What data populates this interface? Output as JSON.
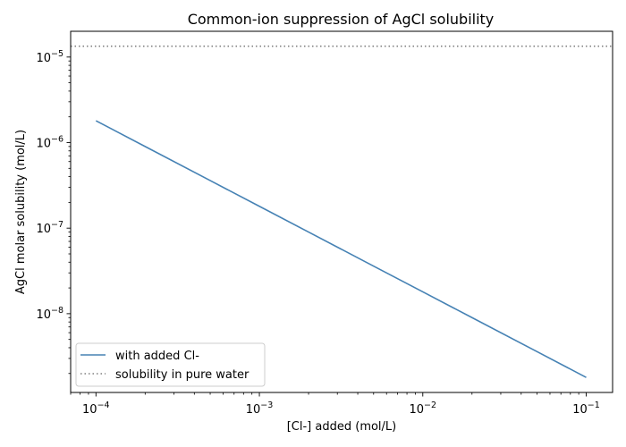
{
  "chart_data": {
    "type": "line",
    "title": "Common-ion suppression of AgCl solubility",
    "xlabel": "[Cl-] added (mol/L)",
    "ylabel": "AgCl molar solubility (mol/L)",
    "xscale": "log",
    "yscale": "log",
    "xlim": [
      7e-05,
      0.145
    ],
    "ylim": [
      1.2e-09,
      2e-05
    ],
    "grid": false,
    "legend_position": "lower-left",
    "x_ticks": [
      {
        "value": 0.0001,
        "mantissa": "10",
        "exp": "−4"
      },
      {
        "value": 0.001,
        "mantissa": "10",
        "exp": "−3"
      },
      {
        "value": 0.01,
        "mantissa": "10",
        "exp": "−2"
      },
      {
        "value": 0.1,
        "mantissa": "10",
        "exp": "−1"
      }
    ],
    "y_ticks": [
      {
        "value": 1e-08,
        "mantissa": "10",
        "exp": "−8"
      },
      {
        "value": 1e-07,
        "mantissa": "10",
        "exp": "−7"
      },
      {
        "value": 1e-06,
        "mantissa": "10",
        "exp": "−6"
      },
      {
        "value": 1e-05,
        "mantissa": "10",
        "exp": "−5"
      }
    ],
    "series": [
      {
        "name": "with added Cl-",
        "style": "solid",
        "color": "#4682b4",
        "x": [
          0.0001,
          0.0002,
          0.0005,
          0.001,
          0.002,
          0.005,
          0.01,
          0.02,
          0.05,
          0.1
        ],
        "y": [
          1.8e-06,
          9e-07,
          3.6e-07,
          1.8e-07,
          9e-08,
          3.6e-08,
          1.8e-08,
          9e-09,
          3.6e-09,
          1.8e-09
        ]
      }
    ],
    "reference_lines": [
      {
        "name": "solubility in pure water",
        "style": "dotted",
        "color": "#808080",
        "y": 1.34e-05
      }
    ]
  }
}
